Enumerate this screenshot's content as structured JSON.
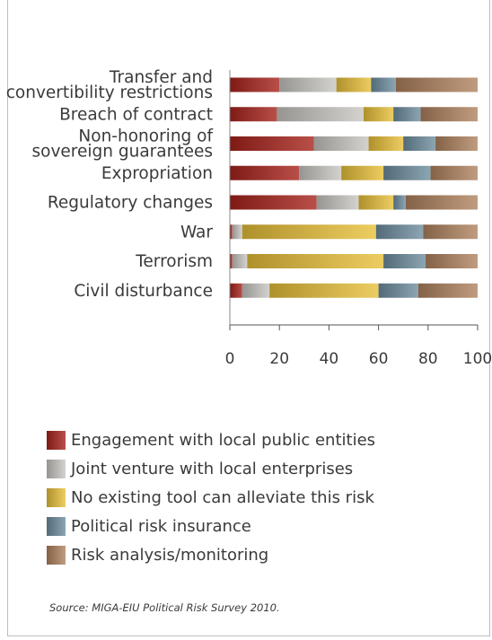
{
  "chart_data": {
    "type": "bar",
    "orientation": "horizontal",
    "stacked": true,
    "categories": [
      "Transfer and convertibility restrictions",
      "Breach of contract",
      "Non-honoring of sovereign guarantees",
      "Expropriation",
      "Regulatory changes",
      "War",
      "Terrorism",
      "Civil disturbance"
    ],
    "category_lines": [
      [
        "Transfer and",
        "convertibility restrictions"
      ],
      [
        "Breach of contract"
      ],
      [
        "Non-honoring of",
        "sovereign guarantees"
      ],
      [
        "Expropriation"
      ],
      [
        "Regulatory changes"
      ],
      [
        "War"
      ],
      [
        "Terrorism"
      ],
      [
        "Civil disturbance"
      ]
    ],
    "series": [
      {
        "name": "Engagement with local public entities",
        "color": "#a8231c",
        "values": [
          20,
          19,
          34,
          28,
          35,
          1,
          1,
          5
        ]
      },
      {
        "name": "Joint venture with local enterprises",
        "color": "#c9c7c2",
        "values": [
          23,
          35,
          22,
          17,
          17,
          4,
          6,
          11
        ]
      },
      {
        "name": "No existing tool can alleviate this risk",
        "color": "#e9c13a",
        "values": [
          14,
          12,
          14,
          17,
          14,
          54,
          55,
          44
        ]
      },
      {
        "name": "Political risk insurance",
        "color": "#6f8fa0",
        "values": [
          10,
          11,
          13,
          19,
          5,
          19,
          17,
          16
        ]
      },
      {
        "name": "Risk analysis/monitoring",
        "color": "#b0835f",
        "values": [
          33,
          23,
          17,
          19,
          29,
          22,
          21,
          24
        ]
      }
    ],
    "xlim": [
      0,
      100
    ],
    "xticks": [
      0,
      20,
      40,
      60,
      80,
      100
    ],
    "xlabel": "",
    "ylabel": "",
    "title": "",
    "grid": false,
    "legend_position": "bottom"
  },
  "legend": [
    {
      "label": "Engagement with local public entities",
      "color": "#a8231c"
    },
    {
      "label": "Joint venture with local enterprises",
      "color": "#c9c7c2"
    },
    {
      "label": "No existing tool can alleviate this risk",
      "color": "#e9c13a"
    },
    {
      "label": "Political risk insurance",
      "color": "#6f8fa0"
    },
    {
      "label": "Risk analysis/monitoring",
      "color": "#b0835f"
    }
  ],
  "source": "Source: MIGA-EIU Political Risk Survey 2010."
}
